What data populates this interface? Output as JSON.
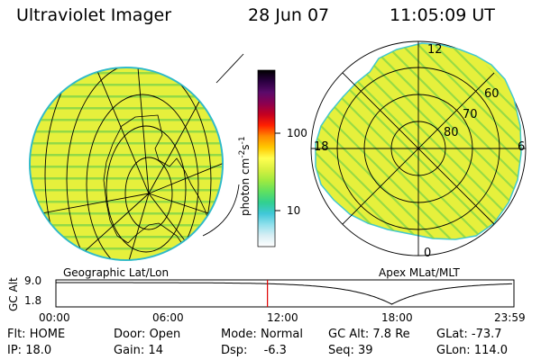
{
  "header": {
    "title": "Ultraviolet Imager",
    "date": "28 Jun 07",
    "time": "11:05:09 UT"
  },
  "colorbar": {
    "unit_label": "photon cm",
    "unit_sup1": "-2",
    "unit_mid": "s",
    "unit_sup2": "-1",
    "scale": "log",
    "ticks": [
      "100",
      "10"
    ],
    "colors": [
      "#000000",
      "#2a0040",
      "#5a0a6a",
      "#8a0050",
      "#c40020",
      "#ff2000",
      "#ff8a00",
      "#ffc800",
      "#ffff50",
      "#d8f040",
      "#a0ea40",
      "#60e060",
      "#30d090",
      "#40c8d8",
      "#90e0ec",
      "#d8eef4",
      "#ffffff"
    ]
  },
  "left_map": {
    "caption": "Geographic Lat/Lon",
    "fill_color": "#e6f03c",
    "stripe_color": "#7ed448"
  },
  "right_map": {
    "caption": "Apex MLat/MLT",
    "fill_color": "#e6f03c",
    "stripe_color": "#7ed448",
    "lat_labels": [
      "60",
      "70",
      "80"
    ],
    "mlt_labels": [
      "12",
      "18",
      "6",
      "0"
    ]
  },
  "altitude_plot": {
    "ylabel": "GC Alt",
    "yticks": [
      "9.0",
      "1.8"
    ],
    "xticks": [
      "00:00",
      "06:00",
      "12:00",
      "18:00",
      "23:59"
    ],
    "cursor_color": "#e00000",
    "cursor_time_hours": 11.085
  },
  "status": {
    "row1": [
      {
        "label": "Flt:",
        "value": "HOME"
      },
      {
        "label": "Door:",
        "value": "Open"
      },
      {
        "label": "Mode:",
        "value": "Normal"
      },
      {
        "label": "GC Alt:",
        "value": "7.8 Re"
      },
      {
        "label": "GLat:",
        "value": "-73.7"
      }
    ],
    "row2": [
      {
        "label": "IP:",
        "value": "18.0"
      },
      {
        "label": "Gain:",
        "value": "14"
      },
      {
        "label": "Dsp:",
        "value": "-6.3"
      },
      {
        "label": "Seq:",
        "value": "39"
      },
      {
        "label": "GLon:",
        "value": "114.0"
      }
    ]
  }
}
